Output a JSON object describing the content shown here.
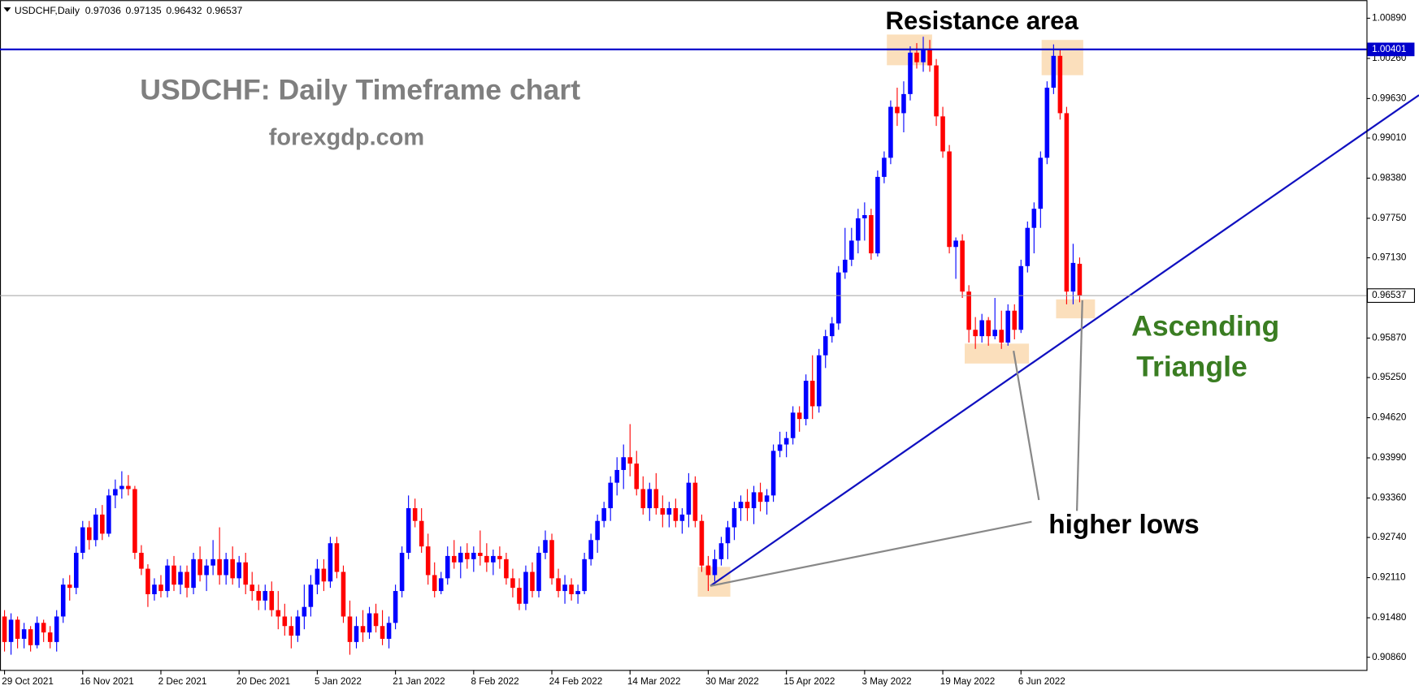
{
  "chart_data": {
    "type": "candlestick",
    "header_symbol": "USDCHF,Daily",
    "title": "USDCHF: Daily Timeframe chart",
    "subtitle": "forexgdp.com",
    "annotations": {
      "resistance": "Resistance area",
      "pattern": [
        "Ascending",
        "Triangle"
      ],
      "higher_lows": "higher lows"
    },
    "up_color": "#0000ff",
    "down_color": "#ff0000",
    "resistance_level": 1.00401,
    "resistance_color": "#0000cc",
    "ylim": [
      0.90661,
      1.01174
    ],
    "yticks": [
      {
        "value": 0.9086,
        "label": "0.90860"
      },
      {
        "value": 0.9148,
        "label": "0.91480"
      },
      {
        "value": 0.9211,
        "label": "0.92110"
      },
      {
        "value": 0.9274,
        "label": "0.92740"
      },
      {
        "value": 0.9336,
        "label": "0.93360"
      },
      {
        "value": 0.9399,
        "label": "0.93990"
      },
      {
        "value": 0.9462,
        "label": "0.94620"
      },
      {
        "value": 0.9525,
        "label": "0.95250"
      },
      {
        "value": 0.9587,
        "label": "0.95870"
      },
      {
        "value": 0.9713,
        "label": "0.97130"
      },
      {
        "value": 0.9775,
        "label": "0.97750"
      },
      {
        "value": 0.9838,
        "label": "0.98380"
      },
      {
        "value": 0.9901,
        "label": "0.99010"
      },
      {
        "value": 0.9963,
        "label": "0.99630"
      },
      {
        "value": 1.0026,
        "label": "1.00260"
      },
      {
        "value": 1.0089,
        "label": "1.00890"
      }
    ],
    "categories": [
      "29 Oct 2021",
      null,
      null,
      null,
      null,
      null,
      null,
      null,
      null,
      null,
      null,
      null,
      "16 Nov 2021",
      null,
      null,
      null,
      null,
      null,
      null,
      null,
      null,
      null,
      null,
      null,
      "2 Dec 2021",
      null,
      null,
      null,
      null,
      null,
      null,
      null,
      null,
      null,
      null,
      null,
      "20 Dec 2021",
      null,
      null,
      null,
      null,
      null,
      null,
      null,
      null,
      null,
      null,
      null,
      "5 Jan 2022",
      null,
      null,
      null,
      null,
      null,
      null,
      null,
      null,
      null,
      null,
      null,
      "21 Jan 2022",
      null,
      null,
      null,
      null,
      null,
      null,
      null,
      null,
      null,
      null,
      null,
      "8 Feb 2022",
      null,
      null,
      null,
      null,
      null,
      null,
      null,
      null,
      null,
      null,
      null,
      "24 Feb 2022",
      null,
      null,
      null,
      null,
      null,
      null,
      null,
      null,
      null,
      null,
      null,
      "14 Mar 2022",
      null,
      null,
      null,
      null,
      null,
      null,
      null,
      null,
      null,
      null,
      null,
      "30 Mar 2022",
      null,
      null,
      null,
      null,
      null,
      null,
      null,
      null,
      null,
      null,
      null,
      "15 Apr 2022",
      null,
      null,
      null,
      null,
      null,
      null,
      null,
      null,
      null,
      null,
      null,
      "3 May 2022",
      null,
      null,
      null,
      null,
      null,
      null,
      null,
      null,
      null,
      null,
      null,
      "19 May 2022",
      null,
      null,
      null,
      null,
      null,
      null,
      null,
      null,
      null,
      null,
      null,
      "6 Jun 2022",
      null,
      null,
      null,
      null,
      null,
      null,
      null,
      null,
      null
    ],
    "values": [
      [
        0.915,
        0.916,
        0.9095,
        0.911
      ],
      [
        0.911,
        0.9155,
        0.909,
        0.9145
      ],
      [
        0.9145,
        0.915,
        0.91,
        0.9115
      ],
      [
        0.9115,
        0.914,
        0.91,
        0.913
      ],
      [
        0.913,
        0.9135,
        0.9095,
        0.9105
      ],
      [
        0.9105,
        0.915,
        0.91,
        0.914
      ],
      [
        0.914,
        0.9145,
        0.911,
        0.9125
      ],
      [
        0.9125,
        0.9135,
        0.91,
        0.911
      ],
      [
        0.911,
        0.916,
        0.9095,
        0.915
      ],
      [
        0.915,
        0.921,
        0.914,
        0.92
      ],
      [
        0.92,
        0.9215,
        0.9175,
        0.9195
      ],
      [
        0.9195,
        0.926,
        0.9185,
        0.925
      ],
      [
        0.925,
        0.93,
        0.924,
        0.929
      ],
      [
        0.929,
        0.93,
        0.9255,
        0.927
      ],
      [
        0.927,
        0.932,
        0.926,
        0.931
      ],
      [
        0.931,
        0.9325,
        0.927,
        0.928
      ],
      [
        0.928,
        0.935,
        0.9275,
        0.934
      ],
      [
        0.934,
        0.9365,
        0.932,
        0.935
      ],
      [
        0.935,
        0.9378,
        0.9335,
        0.9355
      ],
      [
        0.9355,
        0.9372,
        0.934,
        0.935
      ],
      [
        0.935,
        0.9355,
        0.924,
        0.925
      ],
      [
        0.925,
        0.9262,
        0.9215,
        0.9225
      ],
      [
        0.9225,
        0.9232,
        0.9165,
        0.9185
      ],
      [
        0.9185,
        0.921,
        0.9175,
        0.92
      ],
      [
        0.92,
        0.9215,
        0.918,
        0.919
      ],
      [
        0.919,
        0.924,
        0.918,
        0.923
      ],
      [
        0.923,
        0.9245,
        0.919,
        0.92
      ],
      [
        0.92,
        0.923,
        0.9185,
        0.922
      ],
      [
        0.922,
        0.923,
        0.918,
        0.9195
      ],
      [
        0.9195,
        0.925,
        0.9185,
        0.924
      ],
      [
        0.924,
        0.926,
        0.9205,
        0.9215
      ],
      [
        0.9215,
        0.924,
        0.919,
        0.923
      ],
      [
        0.923,
        0.927,
        0.9215,
        0.924
      ],
      [
        0.924,
        0.929,
        0.92,
        0.9215
      ],
      [
        0.9215,
        0.925,
        0.92,
        0.924
      ],
      [
        0.924,
        0.926,
        0.92,
        0.921
      ],
      [
        0.921,
        0.9245,
        0.9195,
        0.9235
      ],
      [
        0.9235,
        0.925,
        0.9185,
        0.92
      ],
      [
        0.92,
        0.922,
        0.9175,
        0.919
      ],
      [
        0.919,
        0.92,
        0.916,
        0.9175
      ],
      [
        0.9175,
        0.92,
        0.916,
        0.919
      ],
      [
        0.919,
        0.9205,
        0.915,
        0.916
      ],
      [
        0.916,
        0.919,
        0.913,
        0.915
      ],
      [
        0.915,
        0.917,
        0.912,
        0.9135
      ],
      [
        0.9135,
        0.915,
        0.91,
        0.912
      ],
      [
        0.912,
        0.916,
        0.911,
        0.915
      ],
      [
        0.915,
        0.92,
        0.913,
        0.9165
      ],
      [
        0.9165,
        0.9215,
        0.915,
        0.92
      ],
      [
        0.92,
        0.924,
        0.9185,
        0.9225
      ],
      [
        0.9225,
        0.924,
        0.919,
        0.9205
      ],
      [
        0.9205,
        0.9275,
        0.9195,
        0.9265
      ],
      [
        0.9265,
        0.9275,
        0.921,
        0.922
      ],
      [
        0.922,
        0.923,
        0.914,
        0.915
      ],
      [
        0.915,
        0.9175,
        0.909,
        0.911
      ],
      [
        0.911,
        0.915,
        0.91,
        0.9135
      ],
      [
        0.9135,
        0.916,
        0.911,
        0.9125
      ],
      [
        0.9125,
        0.9165,
        0.9115,
        0.9155
      ],
      [
        0.9155,
        0.917,
        0.9125,
        0.9135
      ],
      [
        0.9135,
        0.916,
        0.9105,
        0.9115
      ],
      [
        0.9115,
        0.915,
        0.91,
        0.914
      ],
      [
        0.914,
        0.92,
        0.913,
        0.919
      ],
      [
        0.919,
        0.926,
        0.918,
        0.925
      ],
      [
        0.925,
        0.934,
        0.924,
        0.932
      ],
      [
        0.932,
        0.9335,
        0.929,
        0.93
      ],
      [
        0.93,
        0.932,
        0.925,
        0.926
      ],
      [
        0.926,
        0.928,
        0.92,
        0.9215
      ],
      [
        0.9215,
        0.9235,
        0.918,
        0.919
      ],
      [
        0.919,
        0.922,
        0.9185,
        0.921
      ],
      [
        0.921,
        0.926,
        0.92,
        0.9245
      ],
      [
        0.9245,
        0.927,
        0.9225,
        0.9235
      ],
      [
        0.9235,
        0.926,
        0.921,
        0.925
      ],
      [
        0.925,
        0.9265,
        0.9225,
        0.924
      ],
      [
        0.924,
        0.926,
        0.922,
        0.925
      ],
      [
        0.925,
        0.9285,
        0.923,
        0.9245
      ],
      [
        0.9245,
        0.9265,
        0.922,
        0.9235
      ],
      [
        0.9235,
        0.9255,
        0.9215,
        0.9245
      ],
      [
        0.9245,
        0.926,
        0.9225,
        0.924
      ],
      [
        0.924,
        0.925,
        0.92,
        0.921
      ],
      [
        0.921,
        0.9225,
        0.918,
        0.9195
      ],
      [
        0.9195,
        0.921,
        0.916,
        0.917
      ],
      [
        0.917,
        0.923,
        0.916,
        0.922
      ],
      [
        0.922,
        0.9235,
        0.918,
        0.919
      ],
      [
        0.919,
        0.926,
        0.918,
        0.925
      ],
      [
        0.925,
        0.9285,
        0.924,
        0.927
      ],
      [
        0.927,
        0.928,
        0.92,
        0.921
      ],
      [
        0.921,
        0.9225,
        0.918,
        0.919
      ],
      [
        0.919,
        0.9215,
        0.917,
        0.92
      ],
      [
        0.92,
        0.921,
        0.9175,
        0.9185
      ],
      [
        0.9185,
        0.92,
        0.917,
        0.919
      ],
      [
        0.919,
        0.925,
        0.9185,
        0.924
      ],
      [
        0.924,
        0.928,
        0.923,
        0.927
      ],
      [
        0.927,
        0.931,
        0.925,
        0.93
      ],
      [
        0.93,
        0.933,
        0.929,
        0.932
      ],
      [
        0.932,
        0.937,
        0.93,
        0.936
      ],
      [
        0.936,
        0.94,
        0.934,
        0.938
      ],
      [
        0.938,
        0.942,
        0.935,
        0.94
      ],
      [
        0.94,
        0.9452,
        0.937,
        0.939
      ],
      [
        0.939,
        0.941,
        0.934,
        0.935
      ],
      [
        0.935,
        0.937,
        0.931,
        0.932
      ],
      [
        0.932,
        0.936,
        0.93,
        0.935
      ],
      [
        0.935,
        0.9375,
        0.931,
        0.932
      ],
      [
        0.932,
        0.934,
        0.929,
        0.931
      ],
      [
        0.931,
        0.933,
        0.929,
        0.932
      ],
      [
        0.932,
        0.9335,
        0.929,
        0.93
      ],
      [
        0.93,
        0.932,
        0.928,
        0.931
      ],
      [
        0.931,
        0.9375,
        0.929,
        0.936
      ],
      [
        0.936,
        0.937,
        0.929,
        0.93
      ],
      [
        0.93,
        0.931,
        0.922,
        0.923
      ],
      [
        0.923,
        0.9245,
        0.919,
        0.9215
      ],
      [
        0.9215,
        0.9255,
        0.9205,
        0.924
      ],
      [
        0.924,
        0.9275,
        0.923,
        0.9265
      ],
      [
        0.9265,
        0.93,
        0.924,
        0.929
      ],
      [
        0.929,
        0.933,
        0.927,
        0.932
      ],
      [
        0.932,
        0.934,
        0.93,
        0.933
      ],
      [
        0.933,
        0.935,
        0.93,
        0.932
      ],
      [
        0.932,
        0.9355,
        0.9295,
        0.9345
      ],
      [
        0.9345,
        0.936,
        0.9315,
        0.933
      ],
      [
        0.933,
        0.935,
        0.931,
        0.934
      ],
      [
        0.934,
        0.942,
        0.933,
        0.941
      ],
      [
        0.941,
        0.944,
        0.94,
        0.942
      ],
      [
        0.942,
        0.944,
        0.94,
        0.943
      ],
      [
        0.943,
        0.948,
        0.942,
        0.947
      ],
      [
        0.947,
        0.948,
        0.944,
        0.946
      ],
      [
        0.946,
        0.953,
        0.945,
        0.952
      ],
      [
        0.952,
        0.956,
        0.946,
        0.948
      ],
      [
        0.948,
        0.957,
        0.947,
        0.956
      ],
      [
        0.956,
        0.96,
        0.954,
        0.959
      ],
      [
        0.959,
        0.962,
        0.958,
        0.961
      ],
      [
        0.961,
        0.97,
        0.96,
        0.969
      ],
      [
        0.969,
        0.976,
        0.968,
        0.971
      ],
      [
        0.971,
        0.976,
        0.97,
        0.974
      ],
      [
        0.974,
        0.979,
        0.972,
        0.9775
      ],
      [
        0.9775,
        0.98,
        0.974,
        0.978
      ],
      [
        0.978,
        0.979,
        0.971,
        0.972
      ],
      [
        0.972,
        0.985,
        0.9715,
        0.984
      ],
      [
        0.984,
        0.988,
        0.983,
        0.987
      ],
      [
        0.987,
        0.996,
        0.986,
        0.995
      ],
      [
        0.995,
        0.998,
        0.992,
        0.994
      ],
      [
        0.994,
        0.999,
        0.991,
        0.997
      ],
      [
        0.997,
        1.0045,
        0.996,
        1.0035
      ],
      [
        1.0035,
        1.005,
        1.001,
        1.002
      ],
      [
        1.002,
        1.006,
        1.0005,
        1.004
      ],
      [
        1.004,
        1.0055,
        1.0005,
        1.0015
      ],
      [
        1.0015,
        1.0025,
        0.992,
        0.9935
      ],
      [
        0.9935,
        0.995,
        0.987,
        0.988
      ],
      [
        0.988,
        0.989,
        0.972,
        0.973
      ],
      [
        0.973,
        0.9745,
        0.968,
        0.974
      ],
      [
        0.974,
        0.975,
        0.965,
        0.966
      ],
      [
        0.966,
        0.967,
        0.958,
        0.96
      ],
      [
        0.96,
        0.962,
        0.957,
        0.959
      ],
      [
        0.959,
        0.9625,
        0.958,
        0.9615
      ],
      [
        0.9615,
        0.962,
        0.9575,
        0.959
      ],
      [
        0.959,
        0.965,
        0.9585,
        0.96
      ],
      [
        0.96,
        0.963,
        0.957,
        0.958
      ],
      [
        0.958,
        0.964,
        0.9575,
        0.963
      ],
      [
        0.963,
        0.964,
        0.9585,
        0.96
      ],
      [
        0.96,
        0.971,
        0.9595,
        0.97
      ],
      [
        0.97,
        0.977,
        0.969,
        0.976
      ],
      [
        0.976,
        0.98,
        0.972,
        0.979
      ],
      [
        0.979,
        0.988,
        0.976,
        0.987
      ],
      [
        0.987,
        0.999,
        0.986,
        0.998
      ],
      [
        0.998,
        1.0048,
        0.997,
        1.003
      ],
      [
        1.003,
        1.004,
        0.993,
        0.994
      ],
      [
        0.994,
        0.995,
        0.964,
        0.966
      ],
      [
        0.966,
        0.9735,
        0.964,
        0.9705
      ],
      [
        0.97036,
        0.97135,
        0.96432,
        0.96537
      ]
    ]
  }
}
